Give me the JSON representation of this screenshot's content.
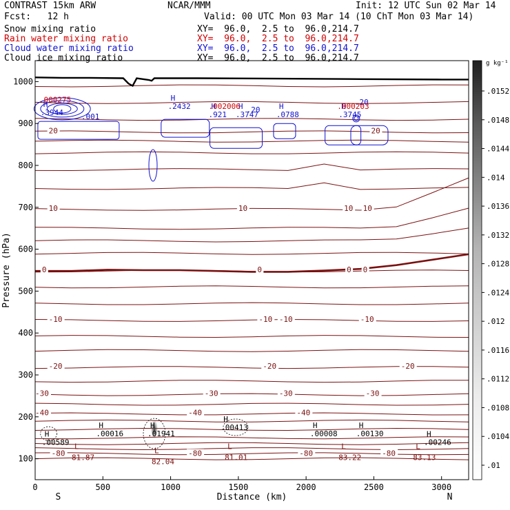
{
  "header": {
    "title_left": "CONTRAST 15km ARW",
    "title_center": "NCAR/MMM",
    "init": "Init: 12 UTC Sun 02 Mar 14",
    "fcst": "Fcst:   12 h",
    "valid": "Valid: 00 UTC Mon 03 Mar 14 (10 ChT Mon 03 Mar 14)",
    "fields": [
      {
        "name": "Snow mixing ratio",
        "xy": "XY=  96.0,  2.5 to  96.0,214.7",
        "color": "#000000"
      },
      {
        "name": "Rain water mixing ratio",
        "xy": "XY=  96.0,  2.5 to  96.0,214.7",
        "color": "#d00000"
      },
      {
        "name": "Cloud water mixing ratio",
        "xy": "XY=  96.0,  2.5 to  96.0,214.7",
        "color": "#1010d0"
      },
      {
        "name": "Cloud ice mixing ratio",
        "xy": "XY=  96.0,  2.5 to  96.0,214.7",
        "color": "#000000"
      }
    ]
  },
  "chart_data": {
    "type": "contour",
    "xlabel": "Distance (km)",
    "ylabel": "Pressure (hPa)",
    "xlim": [
      0,
      3200
    ],
    "ylim": [
      1050,
      50
    ],
    "x_ticks": [
      0,
      500,
      1000,
      1500,
      2000,
      2500,
      3000
    ],
    "y_ticks": [
      100,
      200,
      300,
      400,
      500,
      600,
      700,
      800,
      900,
      1000
    ],
    "x_end_labels": {
      "left": "S",
      "right": "N"
    },
    "colorbar": {
      "unit": "g kg⁻¹",
      "ticks": [
        ".0152",
        ".0148",
        ".0144",
        ".014",
        ".0136",
        ".0132",
        ".0128",
        ".0124",
        ".012",
        ".0116",
        ".0112",
        ".0108",
        ".0104",
        ".01"
      ],
      "color_top": "#202020",
      "color_bottom": "#ffffff"
    },
    "temperature_contours": {
      "color": "#7a1010",
      "labeled_levels": [
        {
          "level": "-80",
          "p": 110,
          "x": [
            120,
            1130,
            1950,
            2560
          ]
        },
        {
          "level": "-40",
          "p": 207,
          "x": [
            0,
            1130,
            1930
          ]
        },
        {
          "level": "-30",
          "p": 253,
          "x": [
            0,
            1250,
            1800,
            2440
          ]
        },
        {
          "level": "-20",
          "p": 318,
          "x": [
            100,
            1680,
            2700
          ]
        },
        {
          "level": "-10",
          "p": 430,
          "x": [
            100,
            1650,
            1800,
            2400
          ]
        },
        {
          "level": "0",
          "p": 548,
          "x": [
            50,
            1640,
            2300,
            2420
          ]
        },
        {
          "level": "10",
          "p": 695,
          "x": [
            100,
            1500,
            2280,
            2420
          ]
        },
        {
          "level": "20",
          "p": 880,
          "x": [
            100,
            2480
          ]
        }
      ],
      "zero_isotherm_p": [
        548,
        548,
        551,
        550,
        550,
        548,
        546,
        546,
        549,
        553,
        562,
        575,
        588
      ]
    },
    "extrema": {
      "temperature_lows": [
        {
          "label": "L",
          "value": "81.87",
          "x": 300,
          "p": 110
        },
        {
          "label": "L",
          "value": "82.04",
          "x": 890,
          "p": 100
        },
        {
          "label": "L",
          "value": "81.01",
          "x": 1430,
          "p": 110
        },
        {
          "label": "L",
          "value": "83.22",
          "x": 2270,
          "p": 110
        },
        {
          "label": "L",
          "value": "83.13",
          "x": 2820,
          "p": 110
        }
      ],
      "ice_highs": [
        {
          "label": "H",
          "value": ".00589",
          "x": 80,
          "p": 140
        },
        {
          "label": "H",
          "value": ".00016",
          "x": 480,
          "p": 160
        },
        {
          "label": "H",
          "value": ".01941",
          "x": 860,
          "p": 160
        },
        {
          "label": "H",
          "value": ".00413",
          "x": 1400,
          "p": 175
        },
        {
          "label": "H",
          "value": ".00008",
          "x": 2060,
          "p": 160
        },
        {
          "label": "H",
          "value": ".00130",
          "x": 2400,
          "p": 160
        },
        {
          "label": "H",
          "value": ".00246",
          "x": 2900,
          "p": 140
        }
      ],
      "cloud_water_highs": [
        {
          "label": "H",
          "value": ".3944",
          "x": 60,
          "p": 930
        },
        {
          "label": "H",
          "value": ".2432",
          "x": 1000,
          "p": 945
        },
        {
          "label": "H",
          "value": ".921",
          "x": 1300,
          "p": 925
        },
        {
          "label": "H",
          "value": ".3747",
          "x": 1500,
          "p": 925
        },
        {
          "label": "H",
          "value": ".0788",
          "x": 1800,
          "p": 925
        },
        {
          "label": "H",
          "value": ".3745",
          "x": 2260,
          "p": 925
        }
      ],
      "cloud_water_contour_labels": [
        ".001",
        ".20",
        ".20"
      ],
      "rain_highs": [
        {
          "label": "H",
          "value": ".000275",
          "x": 50,
          "p": 960
        },
        {
          "label": "H",
          "value": ".002006",
          "x": 1300,
          "p": 945
        },
        {
          "label": "H",
          "value": ".000203",
          "x": 2250,
          "p": 945
        }
      ]
    }
  }
}
